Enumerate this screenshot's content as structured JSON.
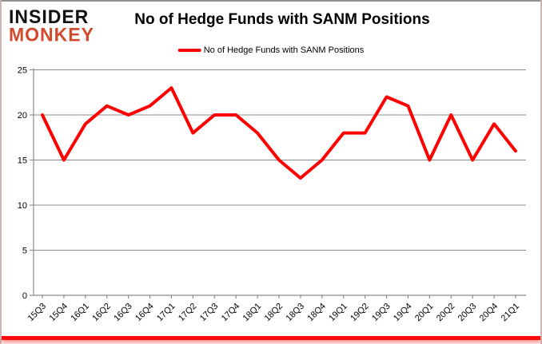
{
  "logo": {
    "line1": "INSIDER",
    "line2": "MONKEY",
    "accent_color": "#d14a2c"
  },
  "title": "No of Hedge Funds with SANM Positions",
  "legend": {
    "label": "No of Hedge Funds with SANM Positions",
    "line_color": "#fe0000"
  },
  "chart_data": {
    "type": "line",
    "title": "No of Hedge Funds with SANM Positions",
    "categories": [
      "15Q3",
      "15Q4",
      "16Q1",
      "16Q2",
      "16Q3",
      "16Q4",
      "17Q1",
      "17Q2",
      "17Q3",
      "17Q4",
      "18Q1",
      "18Q2",
      "18Q3",
      "18Q4",
      "19Q1",
      "19Q2",
      "19Q3",
      "19Q4",
      "20Q1",
      "20Q2",
      "20Q3",
      "20Q4",
      "21Q1"
    ],
    "series": [
      {
        "name": "No of Hedge Funds with SANM Positions",
        "color": "#fe0000",
        "values": [
          20,
          15,
          19,
          21,
          20,
          21,
          23,
          18,
          20,
          20,
          18,
          15,
          13,
          15,
          18,
          18,
          22,
          21,
          15,
          20,
          15,
          19,
          16
        ]
      }
    ],
    "xlabel": "",
    "ylabel": "",
    "ylim": [
      0,
      25
    ],
    "yticks": [
      0,
      5,
      10,
      15,
      20,
      25
    ],
    "grid": true,
    "gridline_color": "#8c8c8c",
    "axis_color": "#8c8c8c",
    "tick_label_color": "#000000",
    "legend_position": "top"
  }
}
